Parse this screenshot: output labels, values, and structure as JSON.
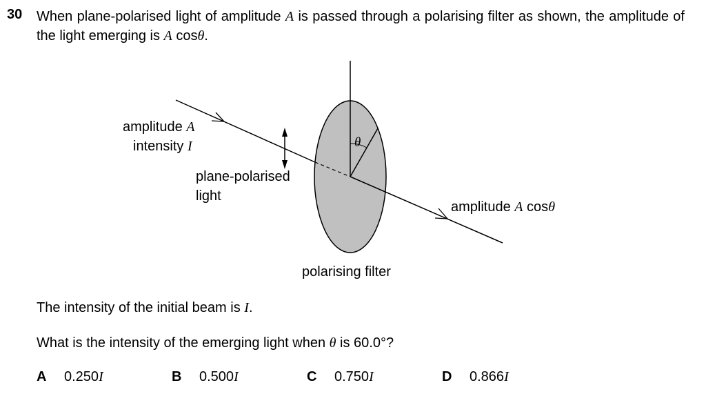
{
  "question": {
    "number": "30",
    "stem_prefix": "When plane-polarised light of amplitude ",
    "stem_var_a": "A",
    "stem_middle": " is passed through a polarising filter as shown, the amplitude of the light emerging is ",
    "stem_expr_var": "A",
    "stem_expr_func": " cos",
    "stem_expr_angle": "θ",
    "stem_suffix": "."
  },
  "diagram": {
    "label_amplitude_text": "amplitude ",
    "label_amplitude_var": "A",
    "label_intensity_text": "intensity ",
    "label_intensity_var": "I",
    "label_plane_polarised_1": "plane-polarised",
    "label_plane_polarised_2": "light",
    "label_theta": "θ",
    "label_emerging_text": "amplitude ",
    "label_emerging_var": "A",
    "label_emerging_func": " cos",
    "label_emerging_angle": "θ",
    "label_filter": "polarising filter",
    "filter_color": "#c0c0c0"
  },
  "body": {
    "intensity_text": "The intensity of the initial beam is ",
    "intensity_var": "I",
    "intensity_suffix": ".",
    "question_text": "What is the intensity of the emerging light when ",
    "question_angle": "θ",
    "question_suffix": " is 60.0°?"
  },
  "options": [
    {
      "key": "A",
      "value": "0.250",
      "unit": "I"
    },
    {
      "key": "B",
      "value": "0.500",
      "unit": "I"
    },
    {
      "key": "C",
      "value": "0.750",
      "unit": "I"
    },
    {
      "key": "D",
      "value": "0.866",
      "unit": "I"
    }
  ]
}
